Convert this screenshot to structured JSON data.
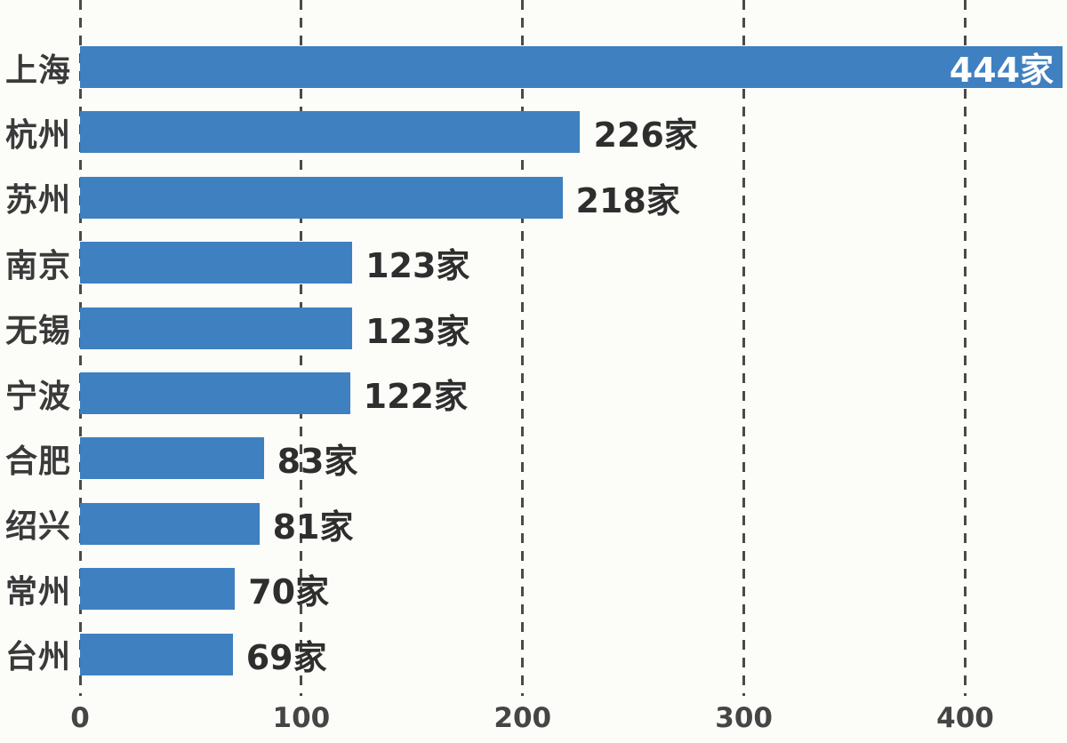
{
  "chart_data": {
    "type": "bar",
    "orientation": "horizontal",
    "title": "",
    "xlabel": "",
    "ylabel": "",
    "unit": "家",
    "categories": [
      "上海",
      "杭州",
      "苏州",
      "南京",
      "无锡",
      "宁波",
      "合肥",
      "绍兴",
      "常州",
      "台州"
    ],
    "values": [
      444,
      226,
      218,
      123,
      123,
      122,
      83,
      81,
      70,
      69
    ],
    "value_labels": [
      "444家",
      "226家",
      "218家",
      "123家",
      "123家",
      "122家",
      "83家",
      "81家",
      "70家",
      "69家"
    ],
    "label_inside": [
      true,
      false,
      false,
      false,
      false,
      false,
      false,
      false,
      false,
      false
    ],
    "xlim": [
      0,
      446
    ],
    "xticks": [
      0,
      100,
      200,
      300,
      400
    ],
    "xtick_labels": [
      "0",
      "100",
      "200",
      "300",
      "400"
    ],
    "grid": "vertical-dashed",
    "legend": "none"
  },
  "colors": {
    "background": "#fcfcf9",
    "bar": "#3f80c0",
    "grid": "#4a4a4a",
    "category_text": "#3a3a3a",
    "value_text": "#2e2e2e",
    "value_text_inside": "#ffffff",
    "axis_text": "#454545"
  }
}
